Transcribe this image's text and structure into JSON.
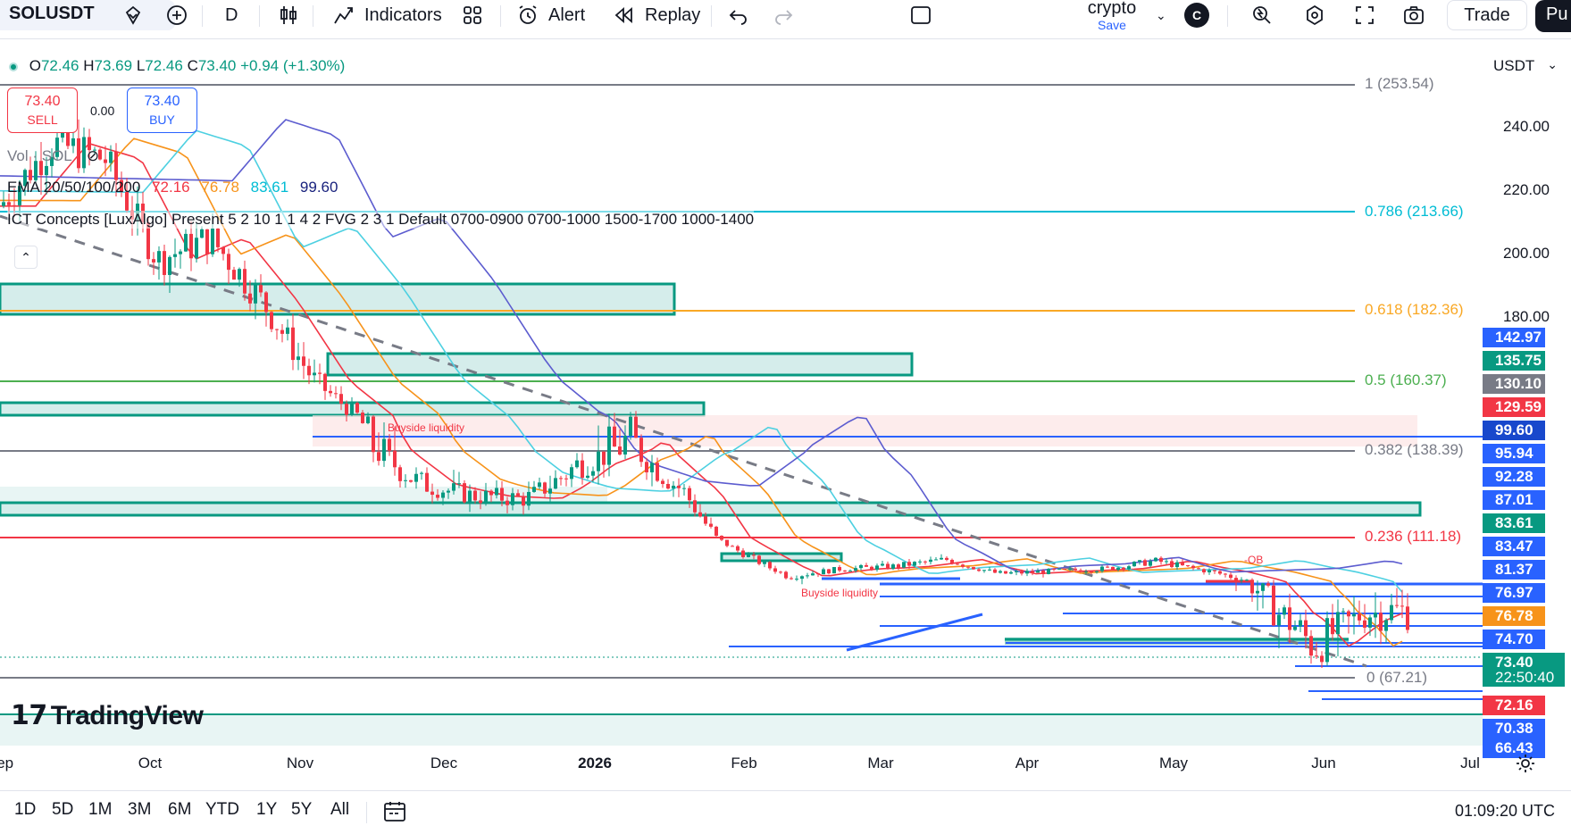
{
  "toolbar": {
    "symbol": "SOLUSDT",
    "interval": "D",
    "indicators_label": "Indicators",
    "alert_label": "Alert",
    "replay_label": "Replay",
    "layout_name": "crypto",
    "layout_save": "Save",
    "avatar_letter": "C",
    "trade_label": "Trade",
    "publish_label": "Pu"
  },
  "legend": {
    "ohlc_o_label": "O",
    "ohlc_o": "72.46",
    "ohlc_h_label": "H",
    "ohlc_h": "73.69",
    "ohlc_l_label": "L",
    "ohlc_l": "72.46",
    "ohlc_c_label": "C",
    "ohlc_c": "73.40",
    "change": "+0.94 (+1.30%)",
    "sell_price": "73.40",
    "sell_label": "SELL",
    "buy_price": "73.40",
    "buy_label": "BUY",
    "spread": "0.00",
    "vol_label": "Vol · SOL",
    "ema_label": "EMA 20/50/100/200",
    "ema_values": [
      "72.16",
      "76.78",
      "83.61",
      "99.60"
    ],
    "ict_label": "ICT Concepts [LuxAlgo] Present 5 2 10 1 1 4 2 FVG 2 3 1 Default 0700-0900 0700-1000 1500-1700 1000-1400"
  },
  "currency_select": "USDT",
  "price_axis": {
    "ticks": [
      "240.00",
      "220.00",
      "200.00",
      "180.00"
    ],
    "tags": [
      {
        "label": "142.97",
        "color": "#2962ff"
      },
      {
        "label": "135.75",
        "color": "#089981"
      },
      {
        "label": "130.10",
        "color": "#787b86"
      },
      {
        "label": "129.59",
        "color": "#f23645"
      },
      {
        "label": "99.60",
        "color": "#1848cc"
      },
      {
        "label": "95.94",
        "color": "#2962ff"
      },
      {
        "label": "92.28",
        "color": "#2962ff"
      },
      {
        "label": "87.01",
        "color": "#2962ff"
      },
      {
        "label": "83.61",
        "color": "#089981"
      },
      {
        "label": "83.47",
        "color": "#2962ff"
      },
      {
        "label": "81.37",
        "color": "#2962ff"
      },
      {
        "label": "76.97",
        "color": "#2962ff"
      },
      {
        "label": "76.78",
        "color": "#f7931a"
      },
      {
        "label": "74.70",
        "color": "#2962ff"
      },
      {
        "label": "73.40",
        "color": "#089981"
      },
      {
        "label": "72.16",
        "color": "#f23645"
      },
      {
        "label": "70.38",
        "color": "#2962ff"
      },
      {
        "label": "66.43",
        "color": "#2962ff"
      }
    ],
    "countdown": "22:50:40"
  },
  "fib_levels": [
    {
      "label": "1 (253.54)",
      "color": "#787b86"
    },
    {
      "label": "0.786 (213.66)",
      "color": "#00bcd4"
    },
    {
      "label": "0.618 (182.36)",
      "color": "#f9a825"
    },
    {
      "label": "0.5 (160.37)",
      "color": "#4caf50"
    },
    {
      "label": "0.382 (138.39)",
      "color": "#787b86"
    },
    {
      "label": "0.236 (111.18)",
      "color": "#f23645"
    },
    {
      "label": "0 (67.21)",
      "color": "#787b86"
    }
  ],
  "annotations": {
    "buyside1": "Buyside liquidity",
    "buyside2": "Buyside liquidity",
    "ob": "-OB"
  },
  "time_axis": [
    "Sep",
    "Oct",
    "Nov",
    "Dec",
    "2026",
    "Feb",
    "Mar",
    "Apr",
    "May",
    "Jun",
    "Jul"
  ],
  "brand": "TradingView",
  "ranges": [
    "1D",
    "5D",
    "1M",
    "3M",
    "6M",
    "YTD",
    "1Y",
    "5Y",
    "All"
  ],
  "clock": "01:09:20 UTC",
  "colors": {
    "up": "#089981",
    "down": "#f23645",
    "ema20": "#f23645",
    "ema50": "#f7931a",
    "ema100": "#4dd0e1",
    "ema200": "#5c5ccf",
    "accent": "#2962ff"
  },
  "chart_data": {
    "type": "candlestick",
    "symbol": "SOLUSDT",
    "interval": "1D",
    "ylim": [
      62,
      262
    ],
    "x": [
      "Sep",
      "Oct",
      "Nov",
      "Dec",
      "2026",
      "Feb",
      "Mar",
      "Apr",
      "May",
      "Jun",
      "Jul"
    ],
    "close_path": [
      {
        "x": "Sep",
        "y": 215
      },
      {
        "x": "Sep",
        "y": 235
      },
      {
        "x": "Oct",
        "y": 230
      },
      {
        "x": "Oct",
        "y": 198
      },
      {
        "x": "Oct",
        "y": 205
      },
      {
        "x": "Nov",
        "y": 185
      },
      {
        "x": "Nov",
        "y": 160
      },
      {
        "x": "Nov",
        "y": 140
      },
      {
        "x": "Dec",
        "y": 130
      },
      {
        "x": "Dec",
        "y": 126
      },
      {
        "x": "2026",
        "y": 125
      },
      {
        "x": "2026",
        "y": 135
      },
      {
        "x": "2026",
        "y": 140
      },
      {
        "x": "2026",
        "y": 128
      },
      {
        "x": "Feb",
        "y": 100
      },
      {
        "x": "Feb",
        "y": 80
      },
      {
        "x": "Feb",
        "y": 86
      },
      {
        "x": "Mar",
        "y": 88
      },
      {
        "x": "Mar",
        "y": 93
      },
      {
        "x": "Apr",
        "y": 82
      },
      {
        "x": "Apr",
        "y": 84
      },
      {
        "x": "May",
        "y": 86
      },
      {
        "x": "May",
        "y": 92
      },
      {
        "x": "May",
        "y": 84
      },
      {
        "x": "Jun",
        "y": 75
      },
      {
        "x": "Jun",
        "y": 70
      },
      {
        "x": "Jun",
        "y": 73.4
      }
    ],
    "last": {
      "open": 72.46,
      "high": 73.69,
      "low": 72.46,
      "close": 73.4,
      "change": 0.94,
      "change_pct": 1.3
    },
    "ema": [
      {
        "name": "EMA 20",
        "value": 72.16
      },
      {
        "name": "EMA 50",
        "value": 76.78
      },
      {
        "name": "EMA 100",
        "value": 83.61
      },
      {
        "name": "EMA 200",
        "value": 99.6
      }
    ],
    "fib": [
      {
        "level": 1,
        "price": 253.54
      },
      {
        "level": 0.786,
        "price": 213.66
      },
      {
        "level": 0.618,
        "price": 182.36
      },
      {
        "level": 0.5,
        "price": 160.37
      },
      {
        "level": 0.382,
        "price": 138.39
      },
      {
        "level": 0.236,
        "price": 111.18
      },
      {
        "level": 0,
        "price": 67.21
      }
    ]
  }
}
